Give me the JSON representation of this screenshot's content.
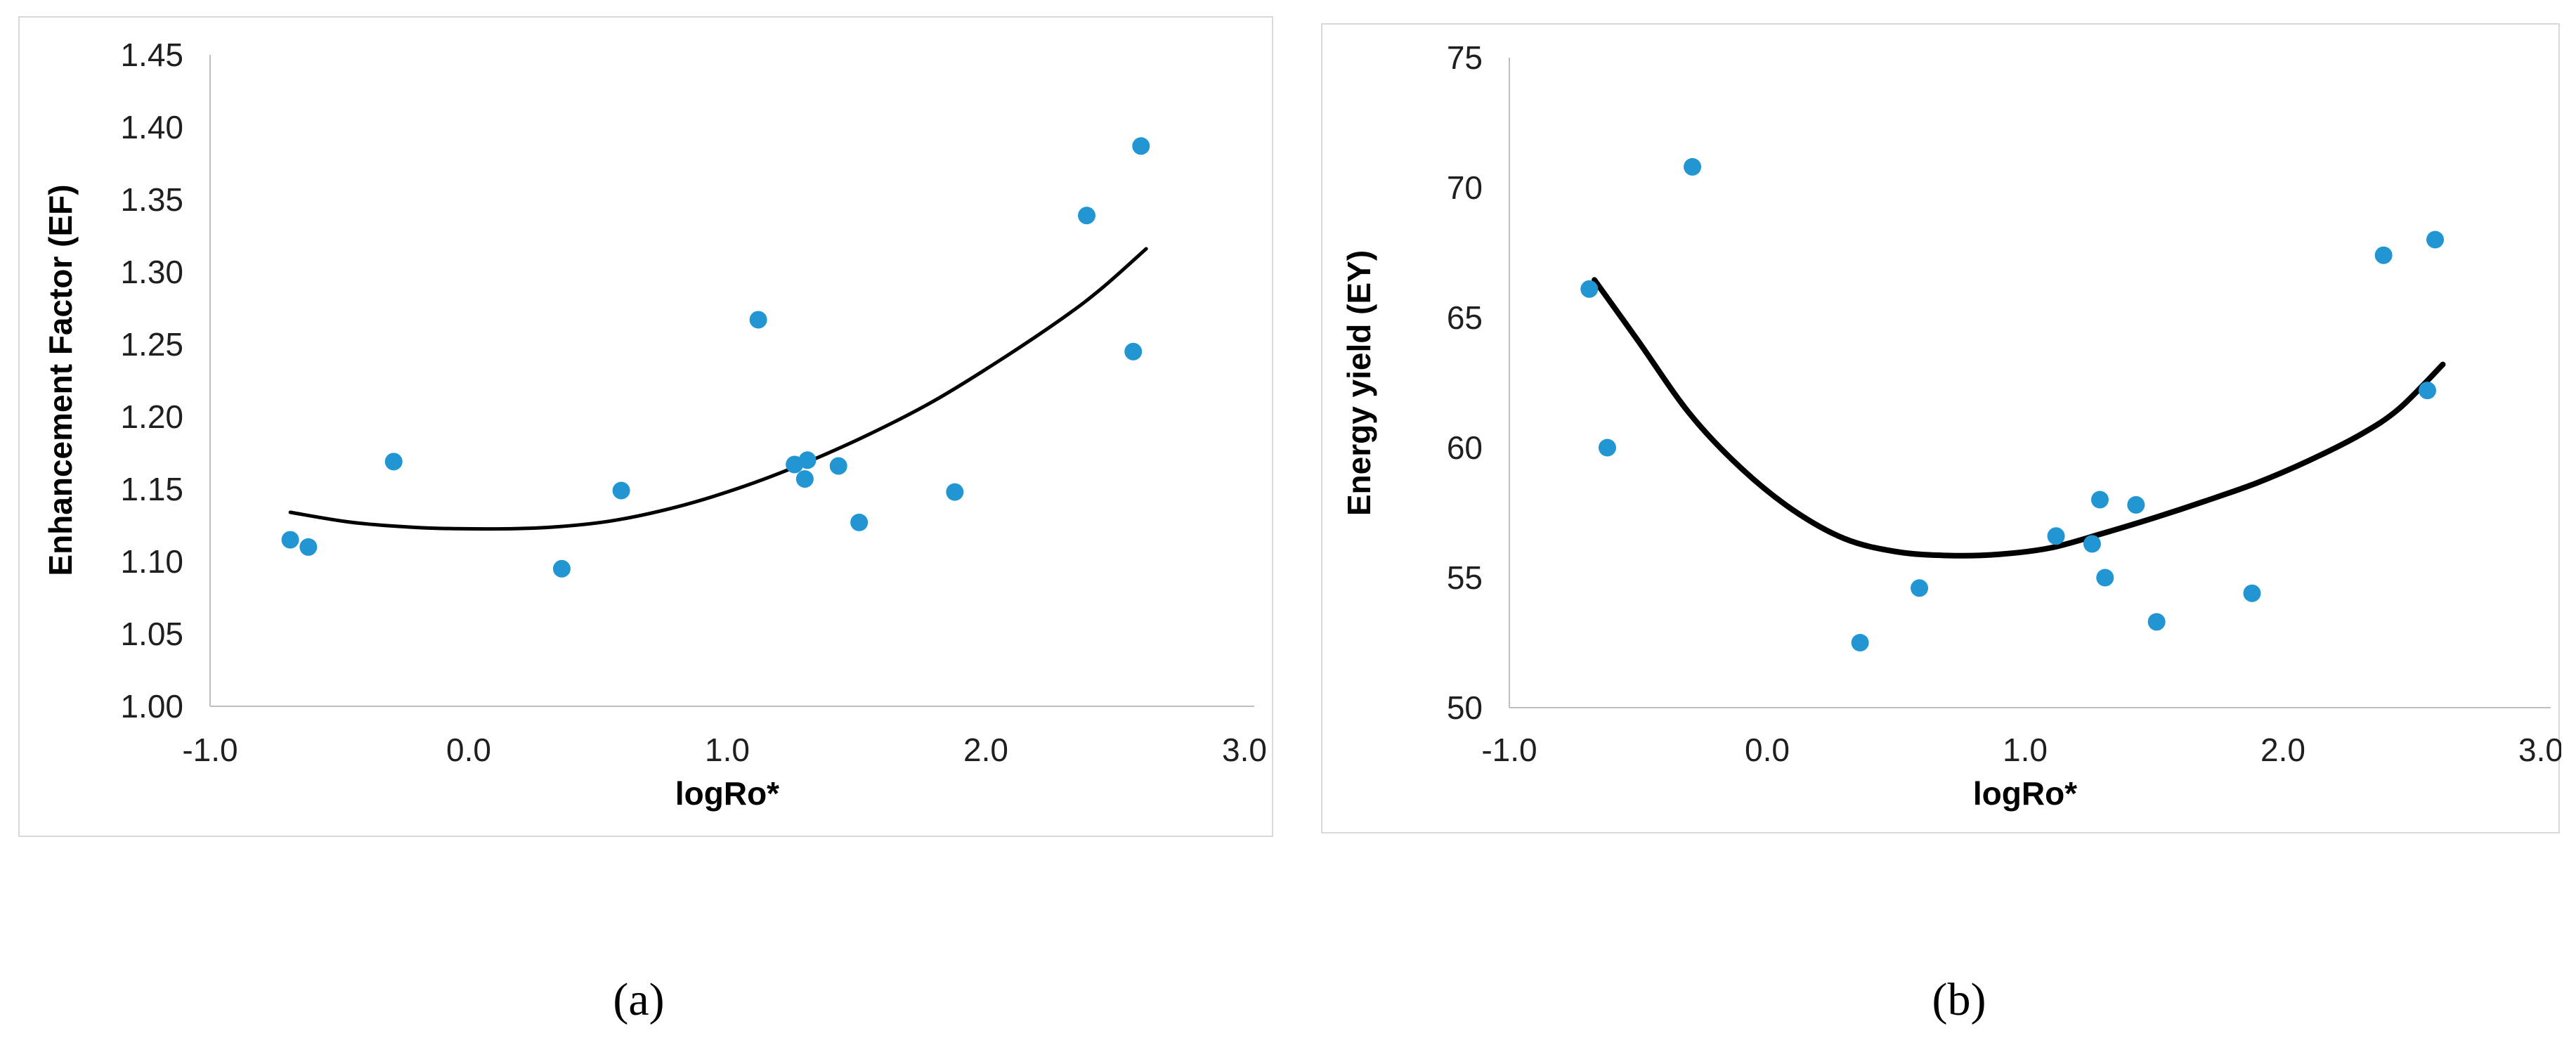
{
  "figure": {
    "background": "#ffffff",
    "caption_a": "(a)",
    "caption_b": "(b)"
  },
  "colors": {
    "point": "#2196d3",
    "trend": "#000000",
    "axis_line": "#bfbfbf",
    "panel_border": "#d9d9d9",
    "tick_text": "#1f1f1f"
  },
  "chart_data": [
    {
      "id": "a",
      "type": "scatter",
      "caption": "(a)",
      "xlabel": "logRo*",
      "ylabel": "Enhancement Factor (EF)",
      "xlim": [
        -1.0,
        3.0
      ],
      "ylim": [
        1.0,
        1.45
      ],
      "grid": false,
      "legend": null,
      "x_ticks": [
        -1.0,
        0.0,
        1.0,
        2.0,
        3.0
      ],
      "x_tick_labels": [
        "-1.0",
        "0.0",
        "1.0",
        "2.0",
        "3.0"
      ],
      "y_ticks": [
        1.0,
        1.05,
        1.1,
        1.15,
        1.2,
        1.25,
        1.3,
        1.35,
        1.4,
        1.45
      ],
      "y_tick_labels": [
        "1.00",
        "1.05",
        "1.10",
        "1.15",
        "1.20",
        "1.25",
        "1.30",
        "1.35",
        "1.40",
        "1.45"
      ],
      "points": [
        [
          -0.69,
          1.115
        ],
        [
          -0.62,
          1.11
        ],
        [
          -0.29,
          1.169
        ],
        [
          0.36,
          1.095
        ],
        [
          0.59,
          1.149
        ],
        [
          1.12,
          1.267
        ],
        [
          1.26,
          1.167
        ],
        [
          1.31,
          1.17
        ],
        [
          1.3,
          1.157
        ],
        [
          1.43,
          1.166
        ],
        [
          1.51,
          1.127
        ],
        [
          1.88,
          1.148
        ],
        [
          2.39,
          1.339
        ],
        [
          2.6,
          1.387
        ],
        [
          2.57,
          1.245
        ]
      ],
      "trend_line": [
        [
          -0.69,
          1.134
        ],
        [
          -0.45,
          1.127
        ],
        [
          -0.2,
          1.1235
        ],
        [
          0.05,
          1.1225
        ],
        [
          0.3,
          1.1235
        ],
        [
          0.55,
          1.128
        ],
        [
          0.8,
          1.1375
        ],
        [
          1.05,
          1.151
        ],
        [
          1.3,
          1.168
        ],
        [
          1.55,
          1.188
        ],
        [
          1.8,
          1.211
        ],
        [
          2.05,
          1.2385
        ],
        [
          2.3,
          1.2685
        ],
        [
          2.45,
          1.289
        ],
        [
          2.62,
          1.316
        ]
      ]
    },
    {
      "id": "b",
      "type": "scatter",
      "caption": "(b)",
      "xlabel": "logRo*",
      "ylabel": "Energy yield (EY)",
      "xlim": [
        -1.0,
        3.0
      ],
      "ylim": [
        50,
        75
      ],
      "grid": false,
      "legend": null,
      "x_ticks": [
        -1.0,
        0.0,
        1.0,
        2.0,
        3.0
      ],
      "x_tick_labels": [
        "-1.0",
        "0.0",
        "1.0",
        "2.0",
        "3.0"
      ],
      "y_ticks": [
        50,
        55,
        60,
        65,
        70,
        75
      ],
      "y_tick_labels": [
        "50",
        "55",
        "60",
        "65",
        "70",
        "75"
      ],
      "points": [
        [
          -0.69,
          66.1
        ],
        [
          -0.62,
          60.0
        ],
        [
          -0.29,
          70.8
        ],
        [
          0.36,
          52.5
        ],
        [
          0.59,
          54.6
        ],
        [
          1.12,
          56.6
        ],
        [
          1.26,
          56.3
        ],
        [
          1.29,
          58.0
        ],
        [
          1.31,
          55.0
        ],
        [
          1.43,
          57.8
        ],
        [
          1.51,
          53.3
        ],
        [
          1.88,
          54.4
        ],
        [
          2.39,
          67.4
        ],
        [
          2.59,
          68.0
        ],
        [
          2.56,
          62.2
        ]
      ],
      "trend_line": [
        [
          -0.67,
          66.45
        ],
        [
          -0.5,
          64.1
        ],
        [
          -0.3,
          61.3
        ],
        [
          -0.1,
          59.2
        ],
        [
          0.1,
          57.6
        ],
        [
          0.3,
          56.5
        ],
        [
          0.5,
          56.0
        ],
        [
          0.7,
          55.85
        ],
        [
          0.9,
          55.9
        ],
        [
          1.1,
          56.15
        ],
        [
          1.3,
          56.7
        ],
        [
          1.5,
          57.3
        ],
        [
          1.7,
          57.95
        ],
        [
          1.9,
          58.65
        ],
        [
          2.1,
          59.5
        ],
        [
          2.3,
          60.5
        ],
        [
          2.45,
          61.5
        ],
        [
          2.62,
          63.2
        ]
      ]
    }
  ]
}
